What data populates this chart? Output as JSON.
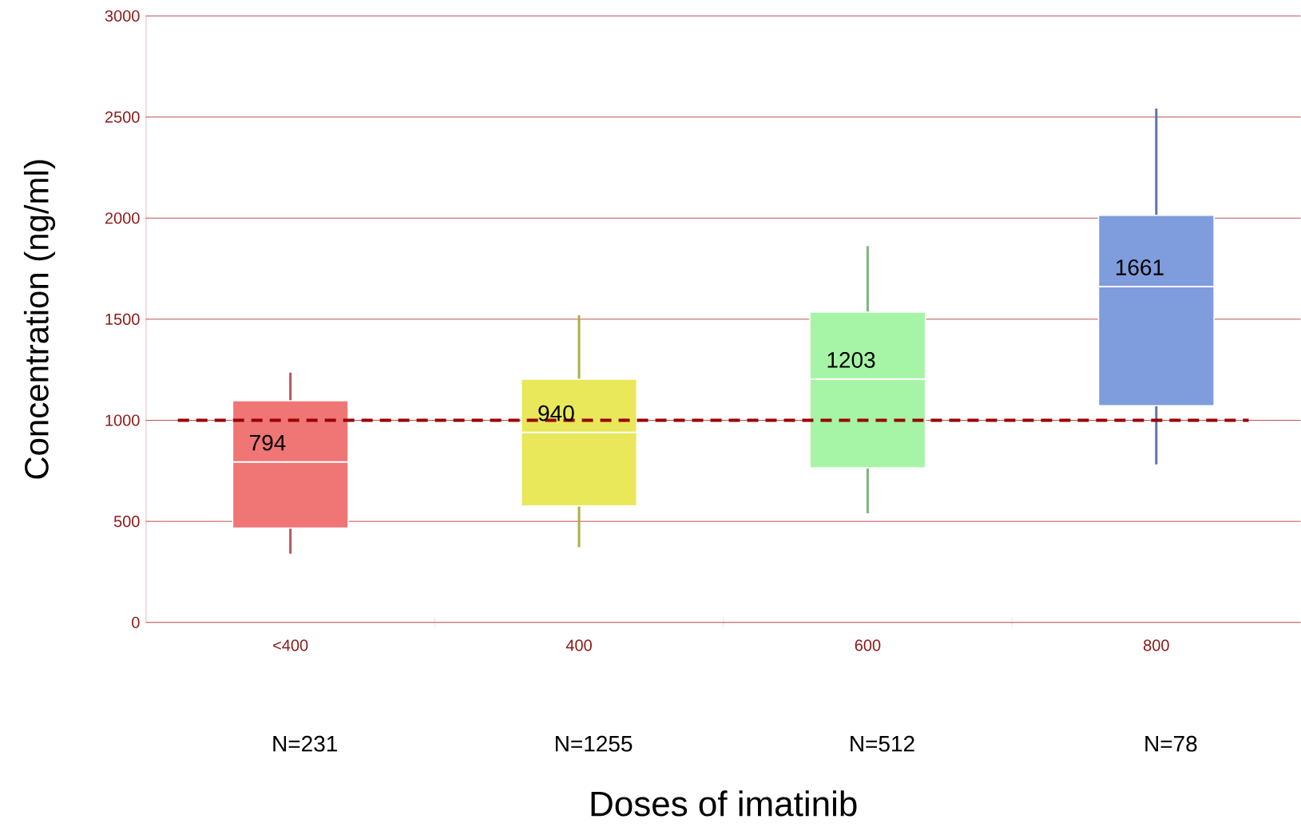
{
  "chart_data": {
    "type": "box",
    "xlabel": "Doses of imatinib",
    "ylabel": "Concentration (ng/ml)",
    "categories": [
      "<400",
      "400",
      "600",
      "800"
    ],
    "boxes": [
      {
        "low": 340,
        "q1": 467,
        "median": 794,
        "q3": 1097,
        "high": 1236
      },
      {
        "low": 372,
        "q1": 577,
        "median": 940,
        "q3": 1203,
        "high": 1519
      },
      {
        "low": 540,
        "q1": 765,
        "median": 1203,
        "q3": 1535,
        "high": 1862
      },
      {
        "low": 782,
        "q1": 1072,
        "median": 1661,
        "q3": 2014,
        "high": 2542
      }
    ],
    "colors": [
      "#f07575",
      "#e8e85a",
      "#a6f5a6",
      "#7f9cdc"
    ],
    "value_labels": [
      "794",
      "940",
      "1203",
      "1661"
    ],
    "ylim": [
      0,
      3000
    ],
    "yticks": [
      0,
      500,
      1000,
      1500,
      2000,
      2500,
      3000
    ],
    "grid": "y",
    "ref_lines": [
      {
        "axis": "y",
        "value": 1000,
        "color": "#990000",
        "line_style": "dashed"
      }
    ],
    "annotations": [
      "N=231",
      "N=1255",
      "N=512",
      "N=78"
    ]
  }
}
